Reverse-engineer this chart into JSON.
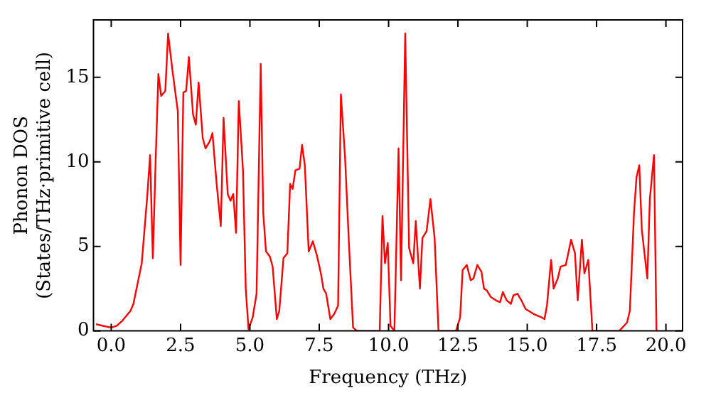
{
  "chart_data": {
    "type": "line",
    "xlabel": "Frequency (THz)",
    "ylabel": "Phonon DOS\n(States/THz·primitive cell)",
    "grid": false,
    "legend": false,
    "marker": "none",
    "line_style": "solid",
    "xlim": [
      -0.64,
      20.6
    ],
    "ylim": [
      0,
      18.4
    ],
    "xticks": [
      {
        "value": 0,
        "label": "0.0"
      },
      {
        "value": 2.5,
        "label": "2.5"
      },
      {
        "value": 5,
        "label": "5.0"
      },
      {
        "value": 7.5,
        "label": "7.5"
      },
      {
        "value": 10,
        "label": "10.0"
      },
      {
        "value": 12.5,
        "label": "12.5"
      },
      {
        "value": 15,
        "label": "15.0"
      },
      {
        "value": 17.5,
        "label": "17.5"
      },
      {
        "value": 20,
        "label": "20.0"
      }
    ],
    "yticks": [
      0,
      5,
      10,
      15
    ],
    "series": [
      {
        "color": "#ff0000",
        "x": [
          -0.55,
          -0.3,
          0.0,
          0.2,
          0.4,
          0.7,
          0.8,
          1.0,
          1.1,
          1.2,
          1.3,
          1.4,
          1.5,
          1.6,
          1.7,
          1.8,
          1.95,
          2.05,
          2.2,
          2.4,
          2.5,
          2.6,
          2.7,
          2.8,
          2.95,
          3.05,
          3.15,
          3.3,
          3.4,
          3.55,
          3.65,
          3.8,
          3.95,
          4.05,
          4.2,
          4.3,
          4.4,
          4.5,
          4.6,
          4.75,
          4.85,
          4.95,
          5.1,
          5.24,
          5.39,
          5.48,
          5.58,
          5.72,
          5.82,
          5.97,
          6.06,
          6.21,
          6.35,
          6.45,
          6.54,
          6.64,
          6.79,
          6.88,
          6.98,
          7.12,
          7.27,
          7.41,
          7.56,
          7.65,
          7.75,
          7.9,
          8.04,
          8.18,
          8.28,
          8.43,
          8.57,
          8.72,
          8.86,
          9.68,
          9.78,
          9.87,
          9.97,
          10.07,
          10.21,
          10.36,
          10.45,
          10.6,
          10.74,
          10.89,
          10.98,
          11.13,
          11.22,
          11.37,
          11.51,
          11.66,
          11.8,
          12.43,
          12.58,
          12.67,
          12.82,
          12.96,
          13.06,
          13.2,
          13.35,
          13.44,
          13.54,
          13.69,
          13.88,
          14.02,
          14.12,
          14.26,
          14.41,
          14.5,
          14.65,
          14.79,
          14.94,
          15.23,
          15.52,
          15.62,
          15.71,
          15.86,
          15.95,
          16.1,
          16.2,
          16.39,
          16.48,
          16.58,
          16.72,
          16.82,
          16.97,
          17.06,
          17.2,
          17.35,
          18.32,
          18.6,
          18.7,
          18.85,
          18.94,
          19.04,
          19.13,
          19.33,
          19.42,
          19.57,
          19.66
        ],
        "values": [
          0.4,
          0.3,
          0.2,
          0.3,
          0.6,
          1.2,
          1.6,
          3.2,
          4,
          6,
          8,
          10.4,
          4.3,
          10,
          15.2,
          13.9,
          14.2,
          17.6,
          15.5,
          13,
          3.9,
          14.1,
          14.2,
          16.2,
          12.8,
          12.2,
          14.7,
          11.4,
          10.8,
          11.2,
          11.7,
          8.7,
          6.2,
          12.6,
          8.1,
          7.7,
          8.1,
          5.8,
          13.6,
          9.5,
          2.5,
          0.1,
          0.8,
          2.2,
          15.8,
          7.0,
          4.7,
          4.4,
          3.8,
          0.7,
          1.2,
          4.3,
          4.6,
          8.7,
          8.4,
          9.5,
          9.6,
          11.0,
          9.8,
          4.7,
          5.3,
          4.5,
          3.4,
          2.5,
          2.2,
          0.7,
          1.0,
          1.5,
          14.0,
          10.3,
          5.2,
          0.2,
          0.0,
          0.0,
          6.8,
          4.0,
          5.2,
          0.3,
          0.0,
          10.8,
          3.0,
          17.6,
          4.9,
          4.0,
          6.5,
          2.5,
          5.5,
          5.9,
          7.8,
          5.5,
          0.0,
          0.0,
          0.8,
          3.6,
          3.9,
          3.0,
          3.1,
          3.9,
          3.5,
          2.5,
          2.4,
          2.0,
          1.8,
          1.7,
          2.3,
          1.8,
          1.6,
          2.1,
          2.2,
          1.8,
          1.3,
          1.0,
          0.8,
          0.7,
          1.5,
          4.2,
          2.5,
          3.1,
          3.8,
          3.9,
          4.6,
          5.4,
          4.6,
          1.8,
          5.4,
          3.4,
          4.2,
          0.0,
          0.0,
          0.5,
          1.2,
          7.0,
          9.1,
          9.8,
          6.0,
          3.1,
          7.8,
          10.4,
          0.0
        ]
      }
    ]
  }
}
